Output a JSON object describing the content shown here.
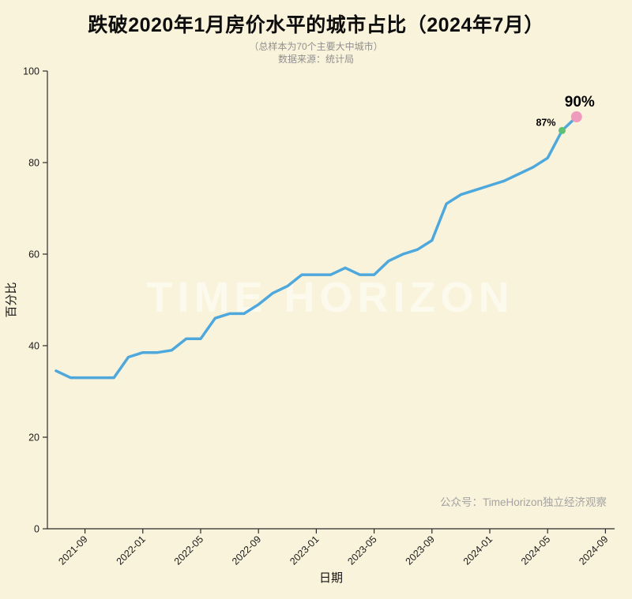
{
  "title": "跌破2020年1月房价水平的城市占比（2024年7月）",
  "subtitle": "（总样本为70个主要大中城市）",
  "source": "数据来源：统计局",
  "watermark": "TIME HORIZON",
  "credit": "公众号：TimeHorizon独立经济观察",
  "colors": {
    "background": "#FAF3DB",
    "line": "#4FA8DC",
    "axis": "#2b2b2b",
    "tick_label": "#1a1a1a",
    "muted": "#8f8f8f",
    "credit": "#a3a3a3",
    "dot_87": "#5FBF72",
    "dot_90": "#EF9BBD",
    "annotation": "#000000",
    "watermark": "#ffffff"
  },
  "chart_data": {
    "type": "line",
    "title": "跌破2020年1月房价水平的城市占比（2024年7月）",
    "xlabel": "日期",
    "ylabel": "百分比",
    "ylim": [
      0,
      100
    ],
    "yticks": [
      0,
      20,
      40,
      60,
      80,
      100
    ],
    "xticks": [
      "2021-09",
      "2022-01",
      "2022-05",
      "2022-09",
      "2023-01",
      "2023-05",
      "2023-09",
      "2024-01",
      "2024-05",
      "2024-09"
    ],
    "grid": false,
    "legend": "none",
    "x": [
      "2021-07",
      "2021-08",
      "2021-09",
      "2021-10",
      "2021-11",
      "2021-12",
      "2022-01",
      "2022-02",
      "2022-03",
      "2022-04",
      "2022-05",
      "2022-06",
      "2022-07",
      "2022-08",
      "2022-09",
      "2022-10",
      "2022-11",
      "2022-12",
      "2023-01",
      "2023-02",
      "2023-03",
      "2023-04",
      "2023-05",
      "2023-06",
      "2023-07",
      "2023-08",
      "2023-09",
      "2023-10",
      "2023-11",
      "2023-12",
      "2024-01",
      "2024-02",
      "2024-03",
      "2024-04",
      "2024-05",
      "2024-06",
      "2024-07"
    ],
    "values": [
      34.5,
      33,
      33,
      33,
      33,
      37.5,
      38.5,
      38.5,
      39,
      41.5,
      41.5,
      46,
      47,
      47,
      49,
      51.5,
      53,
      55.5,
      55.5,
      55.5,
      57,
      55.5,
      55.5,
      58.5,
      60,
      61,
      63,
      71,
      73,
      74,
      75,
      76,
      77.5,
      79,
      81,
      87,
      90
    ],
    "annotations": [
      {
        "x": "2024-06",
        "value": 87,
        "label": "87%",
        "dot_color": "#5FBF72",
        "emphasis": false
      },
      {
        "x": "2024-07",
        "value": 90,
        "label": "90%",
        "dot_color": "#EF9BBD",
        "emphasis": true
      }
    ]
  }
}
